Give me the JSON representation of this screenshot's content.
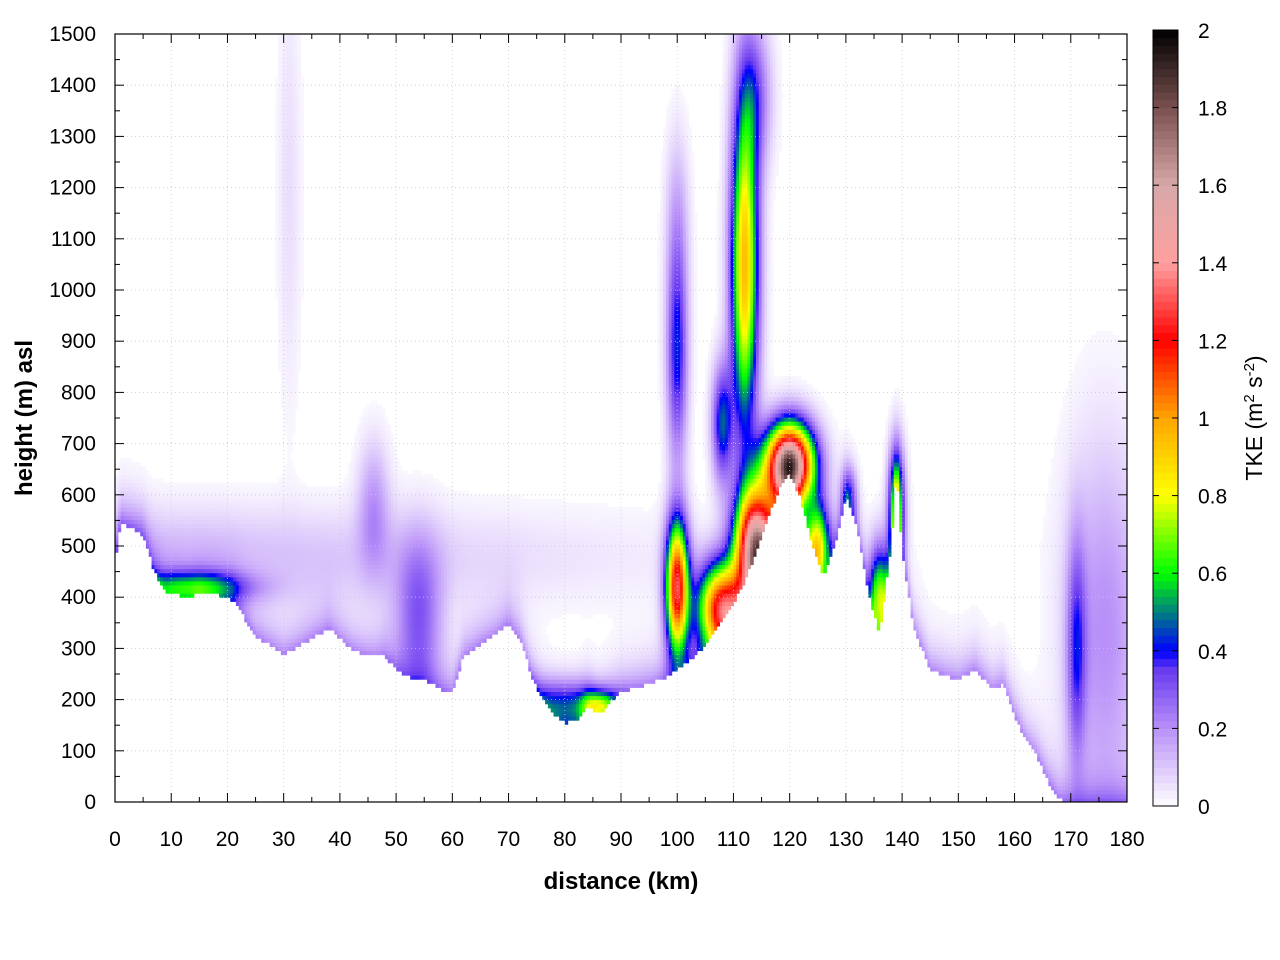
{
  "chart_data": {
    "type": "heatmap",
    "xlabel": "distance (km)",
    "ylabel": "height (m) asl",
    "xlim": [
      0,
      180
    ],
    "ylim": [
      0,
      1500
    ],
    "x_ticks": [
      "0",
      "10",
      "20",
      "30",
      "40",
      "50",
      "60",
      "70",
      "80",
      "90",
      "100",
      "110",
      "120",
      "130",
      "140",
      "150",
      "160",
      "170",
      "180"
    ],
    "y_ticks": [
      "0",
      "100",
      "200",
      "300",
      "400",
      "500",
      "600",
      "700",
      "800",
      "900",
      "1000",
      "1100",
      "1200",
      "1300",
      "1400",
      "1500"
    ],
    "grid": true,
    "colorbar": {
      "label_main": "TKE (m",
      "label_sup1": "2",
      "label_mid": " s",
      "label_sup2": "-2",
      "label_end": ")",
      "range": [
        0,
        2
      ],
      "ticks": [
        "0",
        "0.2",
        "0.4",
        "0.6",
        "0.8",
        "1",
        "1.2",
        "1.4",
        "1.6",
        "1.8",
        "2"
      ],
      "stops": [
        {
          "v": 0.0,
          "color": "#ffffff"
        },
        {
          "v": 0.2,
          "color": "#b890f8"
        },
        {
          "v": 0.35,
          "color": "#6a3cf0"
        },
        {
          "v": 0.4,
          "color": "#0000ff"
        },
        {
          "v": 0.6,
          "color": "#00ff00"
        },
        {
          "v": 0.8,
          "color": "#ffff00"
        },
        {
          "v": 1.0,
          "color": "#ffa500"
        },
        {
          "v": 1.2,
          "color": "#ff0000"
        },
        {
          "v": 1.4,
          "color": "#ffa0a0"
        },
        {
          "v": 1.6,
          "color": "#d8a8a8"
        },
        {
          "v": 1.8,
          "color": "#7a5050"
        },
        {
          "v": 2.0,
          "color": "#000000"
        }
      ]
    },
    "terrain": [
      [
        0,
        470
      ],
      [
        1,
        545
      ],
      [
        3,
        535
      ],
      [
        5,
        520
      ],
      [
        7,
        450
      ],
      [
        9,
        410
      ],
      [
        11,
        405
      ],
      [
        13,
        400
      ],
      [
        15,
        410
      ],
      [
        18,
        405
      ],
      [
        21,
        395
      ],
      [
        23,
        360
      ],
      [
        25,
        325
      ],
      [
        27,
        310
      ],
      [
        30,
        290
      ],
      [
        32,
        300
      ],
      [
        35,
        320
      ],
      [
        38,
        340
      ],
      [
        40,
        320
      ],
      [
        42,
        300
      ],
      [
        44,
        290
      ],
      [
        46,
        285
      ],
      [
        48,
        285
      ],
      [
        50,
        260
      ],
      [
        52,
        245
      ],
      [
        55,
        240
      ],
      [
        58,
        220
      ],
      [
        60,
        215
      ],
      [
        62,
        285
      ],
      [
        65,
        310
      ],
      [
        68,
        330
      ],
      [
        70,
        350
      ],
      [
        72,
        320
      ],
      [
        74,
        250
      ],
      [
        76,
        200
      ],
      [
        78,
        170
      ],
      [
        80,
        155
      ],
      [
        82,
        160
      ],
      [
        84,
        190
      ],
      [
        86,
        170
      ],
      [
        88,
        195
      ],
      [
        90,
        215
      ],
      [
        93,
        225
      ],
      [
        96,
        235
      ],
      [
        98,
        245
      ],
      [
        100,
        260
      ],
      [
        103,
        285
      ],
      [
        106,
        320
      ],
      [
        109,
        370
      ],
      [
        112,
        430
      ],
      [
        115,
        520
      ],
      [
        118,
        610
      ],
      [
        120,
        640
      ],
      [
        122,
        590
      ],
      [
        124,
        500
      ],
      [
        126,
        440
      ],
      [
        128,
        500
      ],
      [
        130,
        600
      ],
      [
        132,
        540
      ],
      [
        134,
        410
      ],
      [
        136,
        330
      ],
      [
        138,
        500
      ],
      [
        139,
        650
      ],
      [
        140,
        490
      ],
      [
        142,
        340
      ],
      [
        145,
        260
      ],
      [
        148,
        245
      ],
      [
        150,
        240
      ],
      [
        153,
        260
      ],
      [
        156,
        220
      ],
      [
        158,
        230
      ],
      [
        160,
        170
      ],
      [
        162,
        120
      ],
      [
        164,
        90
      ],
      [
        166,
        40
      ],
      [
        168,
        5
      ],
      [
        170,
        0
      ],
      [
        172,
        0
      ],
      [
        175,
        0
      ],
      [
        180,
        0
      ]
    ],
    "features": [
      {
        "name": "boundary-layer",
        "x": 0,
        "y": 480,
        "sx": 60,
        "sy": 70,
        "v": 0.12
      },
      {
        "name": "west-ridge-band",
        "x": 14,
        "y": 420,
        "sx": 7,
        "sy": 22,
        "v": 0.42
      },
      {
        "name": "valley-plume-50",
        "x": 54,
        "y": 360,
        "sx": 3,
        "sy": 110,
        "v": 0.28
      },
      {
        "name": "plume-46",
        "x": 46,
        "y": 580,
        "sx": 2,
        "sy": 90,
        "v": 0.18
      },
      {
        "name": "plume-31",
        "x": 31,
        "y": 1200,
        "sx": 1.5,
        "sy": 300,
        "v": 0.06
      },
      {
        "name": "basin-80",
        "x": 80,
        "y": 190,
        "sx": 6,
        "sy": 35,
        "v": 0.36
      },
      {
        "name": "basin-86",
        "x": 86,
        "y": 190,
        "sx": 2,
        "sy": 20,
        "v": 0.45
      },
      {
        "name": "tower-100",
        "x": 100,
        "y": 880,
        "sx": 1.3,
        "sy": 150,
        "v": 0.42
      },
      {
        "name": "tower-100-upper",
        "x": 100,
        "y": 1150,
        "sx": 1.5,
        "sy": 120,
        "v": 0.12
      },
      {
        "name": "tower-112",
        "x": 112,
        "y": 1050,
        "sx": 1.7,
        "sy": 230,
        "v": 0.95
      },
      {
        "name": "tower-112-upper",
        "x": 114,
        "y": 1380,
        "sx": 2,
        "sy": 100,
        "v": 0.25
      },
      {
        "name": "tower-109",
        "x": 108,
        "y": 740,
        "sx": 1.3,
        "sy": 80,
        "v": 0.45
      },
      {
        "name": "core-100",
        "x": 100,
        "y": 420,
        "sx": 1.4,
        "sy": 90,
        "v": 1.25
      },
      {
        "name": "ramp-108",
        "x": 108,
        "y": 380,
        "sx": 3,
        "sy": 60,
        "v": 1.2
      },
      {
        "name": "ramp-114",
        "x": 114,
        "y": 500,
        "sx": 2.5,
        "sy": 80,
        "v": 1.6
      },
      {
        "name": "peak-120",
        "x": 120,
        "y": 660,
        "sx": 3,
        "sy": 55,
        "v": 1.8
      },
      {
        "name": "flank-125",
        "x": 125,
        "y": 500,
        "sx": 1.5,
        "sy": 60,
        "v": 0.8
      },
      {
        "name": "notch-136",
        "x": 136,
        "y": 400,
        "sx": 1.3,
        "sy": 70,
        "v": 0.7
      },
      {
        "name": "spike-139",
        "x": 139,
        "y": 580,
        "sx": 1.0,
        "sy": 80,
        "v": 0.7
      },
      {
        "name": "spike-131",
        "x": 130.5,
        "y": 600,
        "sx": 1.0,
        "sy": 40,
        "v": 0.3
      },
      {
        "name": "east-slab",
        "x": 176,
        "y": 330,
        "sx": 5,
        "sy": 260,
        "v": 0.2
      },
      {
        "name": "east-shaft",
        "x": 171,
        "y": 300,
        "sx": 1.2,
        "sy": 150,
        "v": 0.3
      }
    ]
  }
}
